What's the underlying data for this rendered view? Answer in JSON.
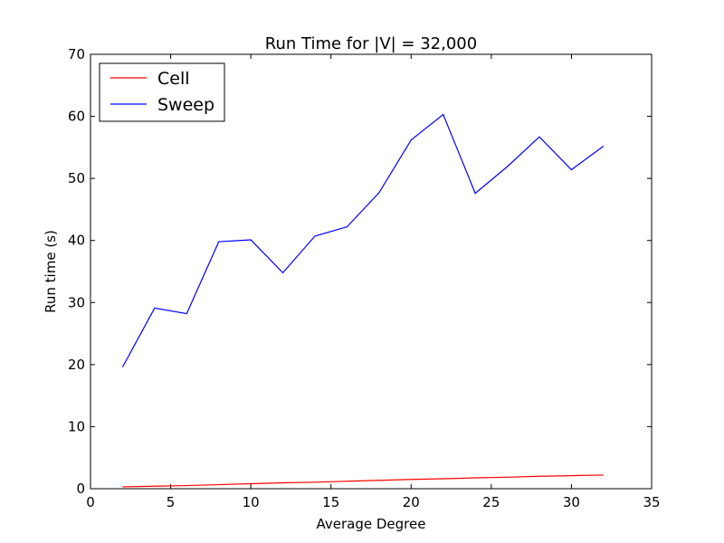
{
  "chart_data": {
    "type": "line",
    "title": "Run Time for |V| = 32,000",
    "xlabel": "Average Degree",
    "ylabel": "Run time (s)",
    "xlim": [
      0,
      35
    ],
    "ylim": [
      0,
      70
    ],
    "xticks": [
      0,
      5,
      10,
      15,
      20,
      25,
      30,
      35
    ],
    "yticks": [
      0,
      10,
      20,
      30,
      40,
      50,
      60,
      70
    ],
    "grid": false,
    "legend_position": "top-left",
    "series": [
      {
        "name": "Cell",
        "color": "#ff0000",
        "x": [
          2,
          4,
          6,
          8,
          10,
          12,
          14,
          16,
          18,
          20,
          22,
          24,
          26,
          28,
          30,
          32
        ],
        "y": [
          0.3,
          0.4,
          0.5,
          0.65,
          0.8,
          0.95,
          1.05,
          1.2,
          1.35,
          1.5,
          1.6,
          1.75,
          1.85,
          2.0,
          2.1,
          2.2
        ]
      },
      {
        "name": "Sweep",
        "color": "#0000ff",
        "x": [
          2,
          4,
          6,
          8,
          10,
          12,
          14,
          16,
          18,
          20,
          22,
          24,
          26,
          28,
          30,
          32
        ],
        "y": [
          19.6,
          29.1,
          28.2,
          39.8,
          40.1,
          34.8,
          40.7,
          42.2,
          47.7,
          56.2,
          60.3,
          47.6,
          51.9,
          56.7,
          51.4,
          55.2
        ]
      }
    ]
  }
}
